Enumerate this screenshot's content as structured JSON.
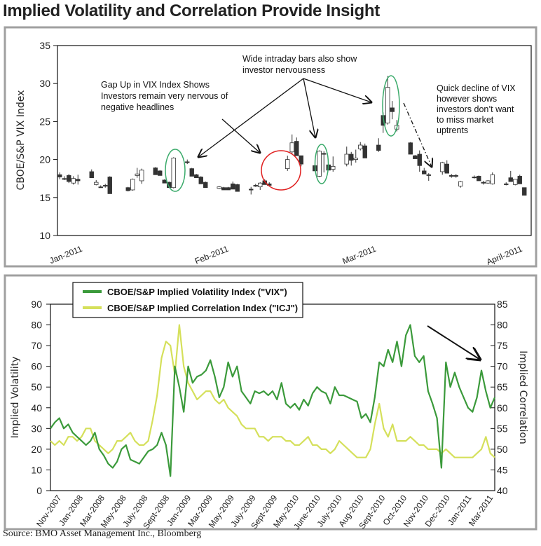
{
  "title": "Implied Volatility and Correlation Provide Insight",
  "source": "Source: BMO Asset Management Inc., Bloomberg",
  "colors": {
    "vix": "#3b9a3b",
    "icj": "#d5e05b",
    "ellipse": "#3aaa6a",
    "circle": "#e02020",
    "frame": "#a0a0a0"
  },
  "chart_data": [
    {
      "type": "candlestick",
      "ylabel": "CBOE/S&P VIX Index",
      "ylim": [
        10,
        35
      ],
      "yticks": [
        10,
        15,
        20,
        25,
        30,
        35
      ],
      "xlim": [
        -0.5,
        103.5
      ],
      "xticks": [
        {
          "label": "Jan-2011",
          "day": 2.3
        },
        {
          "label": "Feb-2011",
          "day": 34.4
        },
        {
          "label": "Mar-2011",
          "day": 66.8
        },
        {
          "label": "April-2011",
          "day": 98.9
        }
      ],
      "candle_format": [
        "day",
        "open",
        "high",
        "low",
        "close"
      ],
      "candles": [
        [
          0,
          18.0,
          18.3,
          17.4,
          17.7
        ],
        [
          1,
          17.5,
          17.8,
          17.3,
          17.5
        ],
        [
          2,
          17.9,
          18.1,
          16.9,
          17.1
        ],
        [
          3,
          16.9,
          17.8,
          16.7,
          17.5
        ],
        [
          4,
          17.4,
          18.0,
          16.7,
          17.2
        ],
        [
          7,
          18.4,
          18.7,
          17.6,
          17.6
        ],
        [
          8,
          16.7,
          17.3,
          16.6,
          17.0
        ],
        [
          9,
          16.4,
          16.6,
          16.3,
          16.4
        ],
        [
          10,
          16.6,
          16.8,
          16.3,
          16.6
        ],
        [
          11,
          17.7,
          17.8,
          15.5,
          15.5
        ],
        [
          15,
          16.3,
          16.4,
          15.8,
          15.9
        ],
        [
          16,
          16.0,
          17.5,
          15.9,
          17.4
        ],
        [
          17,
          17.9,
          18.9,
          17.6,
          18.1
        ],
        [
          18,
          17.2,
          18.8,
          16.8,
          18.6
        ],
        [
          21,
          18.9,
          19.0,
          18.0,
          18.0
        ],
        [
          22,
          18.5,
          18.6,
          17.9,
          17.9
        ],
        [
          23,
          17.3,
          17.4,
          16.9,
          16.9
        ],
        [
          24,
          17.0,
          17.1,
          16.3,
          16.3
        ],
        [
          25,
          16.3,
          20.3,
          16.2,
          20.2
        ],
        [
          28,
          19.7,
          20.0,
          19.4,
          19.7
        ],
        [
          29,
          18.8,
          18.9,
          17.8,
          17.8
        ],
        [
          30,
          18.0,
          18.1,
          17.6,
          17.6
        ],
        [
          31,
          17.7,
          17.8,
          16.8,
          16.8
        ],
        [
          32,
          17.0,
          17.1,
          16.3,
          16.3
        ],
        [
          35,
          16.2,
          16.5,
          16.1,
          16.4
        ],
        [
          36,
          16.3,
          16.4,
          16.0,
          16.0
        ],
        [
          37,
          16.3,
          16.4,
          16.0,
          16.0
        ],
        [
          38,
          16.8,
          17.1,
          16.1,
          16.1
        ],
        [
          39,
          16.7,
          16.8,
          15.8,
          15.8
        ],
        [
          42,
          16.1,
          16.4,
          15.4,
          16.1
        ],
        [
          43,
          16.6,
          16.8,
          16.4,
          16.6
        ],
        [
          44,
          16.4,
          17.0,
          16.0,
          16.9
        ],
        [
          45,
          17.2,
          17.4,
          16.7,
          16.7
        ],
        [
          46,
          16.8,
          17.0,
          16.6,
          16.6
        ],
        [
          50,
          18.8,
          20.5,
          18.5,
          20.0
        ],
        [
          51,
          21.0,
          23.3,
          20.8,
          22.2
        ],
        [
          52,
          22.4,
          22.9,
          20.5,
          20.5
        ],
        [
          53,
          20.5,
          20.5,
          19.1,
          19.4
        ],
        [
          56,
          19.2,
          19.3,
          18.5,
          18.5
        ],
        [
          57,
          17.8,
          21.2,
          17.7,
          21.1
        ],
        [
          58,
          20.8,
          21.1,
          18.3,
          20.8
        ],
        [
          59,
          19.3,
          19.4,
          18.6,
          18.6
        ],
        [
          60,
          18.7,
          20.4,
          18.4,
          19.1
        ],
        [
          63,
          19.4,
          21.7,
          19.1,
          20.7
        ],
        [
          64,
          20.7,
          21.0,
          19.2,
          19.9
        ],
        [
          65,
          20.0,
          21.3,
          19.6,
          20.2
        ],
        [
          66,
          21.4,
          22.3,
          21.2,
          21.9
        ],
        [
          67,
          21.8,
          22.1,
          20.2,
          20.2
        ],
        [
          70,
          21.9,
          22.8,
          21.0,
          21.2
        ],
        [
          71,
          25.8,
          26.2,
          23.5,
          24.5
        ],
        [
          72,
          24.8,
          31.0,
          24.6,
          29.5
        ],
        [
          73,
          26.8,
          27.7,
          25.3,
          26.3
        ],
        [
          74,
          24.0,
          25.2,
          23.7,
          24.5
        ],
        [
          77,
          22.2,
          22.3,
          20.7,
          20.7
        ],
        [
          78,
          20.5,
          20.6,
          20.1,
          20.1
        ],
        [
          79,
          20.7,
          21.2,
          18.4,
          19.2
        ],
        [
          80,
          18.5,
          18.9,
          18.1,
          18.1
        ],
        [
          81,
          18.0,
          18.2,
          17.2,
          18.0
        ],
        [
          84,
          18.4,
          19.7,
          18.0,
          19.6
        ],
        [
          85,
          19.4,
          19.9,
          18.2,
          18.2
        ],
        [
          86,
          17.9,
          18.1,
          17.6,
          17.9
        ],
        [
          87,
          17.9,
          18.1,
          17.6,
          17.9
        ],
        [
          88,
          16.5,
          17.2,
          16.3,
          17.1
        ],
        [
          91,
          17.7,
          17.9,
          17.5,
          17.7
        ],
        [
          92,
          17.8,
          17.9,
          17.2,
          17.2
        ],
        [
          93,
          17.0,
          17.2,
          16.7,
          17.0
        ],
        [
          94,
          16.9,
          17.3,
          16.8,
          17.2
        ],
        [
          95,
          16.8,
          18.3,
          16.7,
          18.0
        ],
        [
          98,
          16.8,
          17.0,
          16.6,
          16.8
        ],
        [
          99,
          17.6,
          18.5,
          17.1,
          17.1
        ],
        [
          100,
          16.7,
          17.4,
          16.6,
          17.4
        ],
        [
          101,
          17.8,
          18.0,
          16.8,
          16.8
        ],
        [
          102,
          16.3,
          16.3,
          15.3,
          15.3
        ]
      ],
      "annotations": [
        {
          "id": "wide-bars",
          "lines": [
            "Wide intraday bars also show",
            "investor nervousness"
          ]
        },
        {
          "id": "gap-up",
          "lines": [
            "Gap Up in VIX Index Shows",
            "Investors remain very nervous of",
            "negative headlines"
          ]
        },
        {
          "id": "quick-decline",
          "lines": [
            "Quick decline of VIX",
            "however shows",
            "investors don’t want",
            "to miss market",
            "uptrents"
          ]
        }
      ]
    },
    {
      "type": "line",
      "ylabel": "Implied Volatility",
      "y2label": "Implied Correlation",
      "ylim": [
        0,
        90
      ],
      "yticks": [
        0,
        10,
        20,
        30,
        40,
        50,
        60,
        70,
        80,
        90
      ],
      "y2lim": [
        40,
        85
      ],
      "y2ticks": [
        40,
        45,
        50,
        55,
        60,
        65,
        70,
        75,
        80,
        85
      ],
      "xlim": [
        0,
        100
      ],
      "xticks": [
        "Nov-2007",
        "Jan-2008",
        "Mar-2008",
        "May-2008",
        "July-2008",
        "Sept-2008",
        "Jan-2009",
        "Mar-2009",
        "May-2009",
        "July-2009",
        "Sept-2009",
        "May-2010",
        "June-2010",
        "July-2010",
        "Aug-2010",
        "Sept-2010",
        "Oct-2010",
        "Nov-2010",
        "Dec-2010",
        "Jan-2011",
        "Mar-2011"
      ],
      "legend": {
        "placement": "top-left",
        "entries": [
          "CBOE/S&P Implied Volatility Index (\"VIX\")",
          "CBOE/S&P Implied Correlation Index (\"ICJ\")"
        ]
      },
      "series": [
        {
          "name": "CBOE/S&P Implied Volatility Index (\"VIX\")",
          "axis": "left",
          "values": [
            30,
            33,
            35,
            30,
            32,
            28,
            26,
            24,
            22,
            24,
            28,
            20,
            17,
            13,
            11,
            14,
            20,
            22,
            15,
            14,
            13,
            16,
            19,
            20,
            22,
            28,
            22,
            7,
            60,
            50,
            38,
            60,
            52,
            55,
            56,
            58,
            63,
            55,
            45,
            50,
            62,
            55,
            60,
            48,
            45,
            42,
            48,
            47,
            48,
            46,
            48,
            44,
            52,
            42,
            40,
            42,
            39,
            44,
            41,
            47,
            50,
            48,
            47,
            42,
            50,
            46,
            46,
            45,
            44,
            43,
            35,
            37,
            33,
            45,
            62,
            60,
            68,
            62,
            72,
            60,
            75,
            80,
            65,
            62,
            65,
            48,
            42,
            35,
            11,
            62,
            50,
            57,
            50,
            45,
            40,
            38,
            45,
            58,
            48,
            40,
            45
          ]
        },
        {
          "name": "CBOE/S&P Implied Correlation Index (\"ICJ\")",
          "axis": "right",
          "values": [
            52,
            51,
            52,
            51,
            53,
            53,
            52,
            53,
            55,
            55,
            52,
            51,
            50,
            49,
            50,
            52,
            52,
            53,
            54,
            52,
            51,
            51,
            52,
            57,
            63,
            72,
            76,
            75,
            68,
            80,
            70,
            66,
            64,
            62,
            63,
            64,
            64,
            62,
            61,
            62,
            60,
            59,
            58,
            56,
            55,
            55,
            55,
            53,
            53,
            52,
            53,
            53,
            53,
            52,
            52,
            51,
            51,
            52,
            53,
            51,
            51,
            50,
            50,
            49,
            50,
            52,
            51,
            50,
            49,
            48,
            48,
            48,
            50,
            56,
            61,
            55,
            53,
            56,
            52,
            52,
            52,
            53,
            52,
            51,
            51,
            50,
            50,
            50,
            49,
            50,
            49,
            48,
            48,
            48,
            48,
            48,
            49,
            50,
            53,
            49,
            48
          ]
        }
      ]
    }
  ]
}
